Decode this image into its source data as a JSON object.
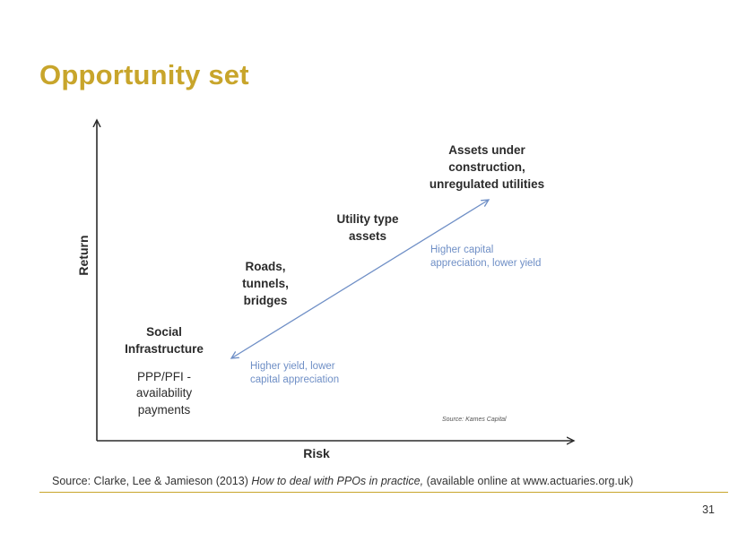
{
  "slide": {
    "title": "Opportunity set",
    "page_number": "31",
    "colors": {
      "accent": "#c8a52b",
      "arrow": "#6f8fc6",
      "text": "#2b2b2b"
    }
  },
  "diagram": {
    "y_axis_label": "Return",
    "x_axis_label": "Risk",
    "categories": {
      "social": {
        "title_lines": [
          "Social",
          "Infrastructure"
        ],
        "detail_lines": [
          "PPP/PFI -",
          "availability",
          "payments"
        ]
      },
      "roads": {
        "lines": [
          "Roads,",
          "tunnels,",
          "bridges"
        ]
      },
      "utility": {
        "lines": [
          "Utility type",
          "assets"
        ]
      },
      "assets": {
        "lines": [
          "Assets under",
          "construction,",
          "unregulated utilities"
        ]
      }
    },
    "arrow_labels": {
      "upper": [
        "Higher capital",
        "appreciation, lower yield"
      ],
      "lower": [
        "Higher yield, lower",
        "capital appreciation"
      ]
    },
    "image_credit": "Source: Kames Capital"
  },
  "footer": {
    "source_prefix": "Source: Clarke, Lee & Jamieson (2013) ",
    "source_title": "How to deal with PPOs in practice,",
    "source_suffix": " (available online at www.actuaries.org.uk)"
  }
}
